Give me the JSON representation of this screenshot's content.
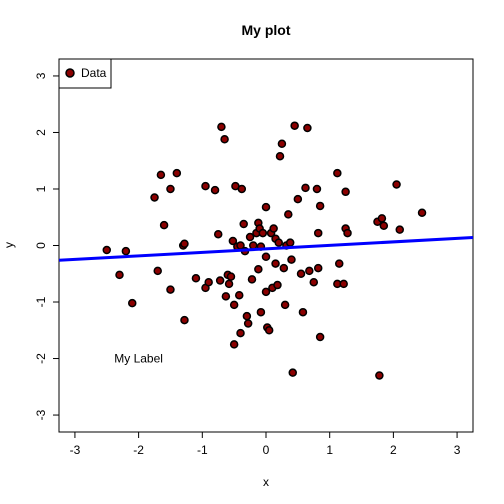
{
  "chart_data": {
    "type": "scatter",
    "title": "My plot",
    "xlabel": "x",
    "ylabel": "y",
    "xlim": [
      -3.25,
      3.25
    ],
    "ylim": [
      -3.3,
      3.3
    ],
    "xticks": [
      -3,
      -2,
      -1,
      0,
      1,
      2,
      3
    ],
    "yticks": [
      -3,
      -2,
      -1,
      0,
      1,
      2,
      3
    ],
    "grid": false,
    "legend": {
      "position": "top-left",
      "label": "Data"
    },
    "annotation": {
      "text": "My Label",
      "x": -2.0,
      "y": -2.0
    },
    "series": [
      {
        "name": "Data",
        "marker_fill": "#8b0000",
        "marker_edge": "#000000",
        "points": [
          [
            -2.5,
            -0.08
          ],
          [
            -2.3,
            -0.52
          ],
          [
            -2.2,
            -0.1
          ],
          [
            -2.1,
            -1.02
          ],
          [
            -1.75,
            0.85
          ],
          [
            -1.7,
            -0.45
          ],
          [
            -1.65,
            1.25
          ],
          [
            -1.6,
            0.36
          ],
          [
            -1.5,
            1.0
          ],
          [
            -1.5,
            -0.78
          ],
          [
            -1.4,
            1.28
          ],
          [
            -1.3,
            0.0
          ],
          [
            -1.28,
            0.03
          ],
          [
            -1.28,
            -1.32
          ],
          [
            -1.1,
            -0.58
          ],
          [
            -0.95,
            1.05
          ],
          [
            -0.95,
            -0.75
          ],
          [
            -0.9,
            -0.65
          ],
          [
            -0.8,
            0.98
          ],
          [
            -0.75,
            0.2
          ],
          [
            -0.72,
            -0.62
          ],
          [
            -0.7,
            2.1
          ],
          [
            -0.65,
            1.88
          ],
          [
            -0.63,
            -0.9
          ],
          [
            -0.6,
            -0.52
          ],
          [
            -0.58,
            -0.68
          ],
          [
            -0.55,
            -0.55
          ],
          [
            -0.52,
            0.08
          ],
          [
            -0.5,
            -1.05
          ],
          [
            -0.5,
            -1.75
          ],
          [
            -0.48,
            1.05
          ],
          [
            -0.45,
            -0.02
          ],
          [
            -0.42,
            -0.88
          ],
          [
            -0.4,
            0.0
          ],
          [
            -0.4,
            -1.55
          ],
          [
            -0.38,
            1.0
          ],
          [
            -0.35,
            0.38
          ],
          [
            -0.33,
            -0.1
          ],
          [
            -0.3,
            -1.25
          ],
          [
            -0.28,
            -1.38
          ],
          [
            -0.25,
            0.15
          ],
          [
            -0.22,
            -0.6
          ],
          [
            -0.2,
            0.0
          ],
          [
            -0.15,
            0.22
          ],
          [
            -0.12,
            0.4
          ],
          [
            -0.12,
            -0.42
          ],
          [
            -0.1,
            0.3
          ],
          [
            -0.08,
            -0.02
          ],
          [
            -0.08,
            -1.18
          ],
          [
            -0.05,
            0.22
          ],
          [
            0.0,
            0.68
          ],
          [
            0.0,
            -0.2
          ],
          [
            0.0,
            -0.82
          ],
          [
            0.02,
            -1.45
          ],
          [
            0.05,
            -1.5
          ],
          [
            0.08,
            0.22
          ],
          [
            0.1,
            -0.75
          ],
          [
            0.12,
            0.3
          ],
          [
            0.15,
            0.12
          ],
          [
            0.15,
            -0.32
          ],
          [
            0.18,
            -0.7
          ],
          [
            0.2,
            0.05
          ],
          [
            0.22,
            1.58
          ],
          [
            0.25,
            1.8
          ],
          [
            0.28,
            -0.4
          ],
          [
            0.3,
            -1.05
          ],
          [
            0.32,
            0.0
          ],
          [
            0.35,
            0.55
          ],
          [
            0.38,
            0.05
          ],
          [
            0.4,
            -0.25
          ],
          [
            0.42,
            -2.25
          ],
          [
            0.45,
            2.12
          ],
          [
            0.5,
            0.82
          ],
          [
            0.55,
            -0.5
          ],
          [
            0.58,
            -1.18
          ],
          [
            0.62,
            1.02
          ],
          [
            0.65,
            2.08
          ],
          [
            0.68,
            -0.45
          ],
          [
            0.75,
            -0.65
          ],
          [
            0.8,
            1.0
          ],
          [
            0.82,
            0.22
          ],
          [
            0.82,
            -0.4
          ],
          [
            0.85,
            0.7
          ],
          [
            0.85,
            -1.62
          ],
          [
            1.12,
            -0.68
          ],
          [
            1.12,
            1.28
          ],
          [
            1.15,
            -0.32
          ],
          [
            1.22,
            -0.68
          ],
          [
            1.25,
            0.95
          ],
          [
            1.25,
            0.3
          ],
          [
            1.28,
            0.22
          ],
          [
            1.75,
            0.42
          ],
          [
            1.78,
            -2.3
          ],
          [
            1.82,
            0.48
          ],
          [
            1.85,
            0.35
          ],
          [
            2.05,
            1.08
          ],
          [
            2.1,
            0.28
          ],
          [
            2.45,
            0.58
          ]
        ]
      }
    ],
    "regression_line": {
      "intercept": -0.06,
      "slope": 0.062,
      "color": "#0000ff"
    }
  }
}
